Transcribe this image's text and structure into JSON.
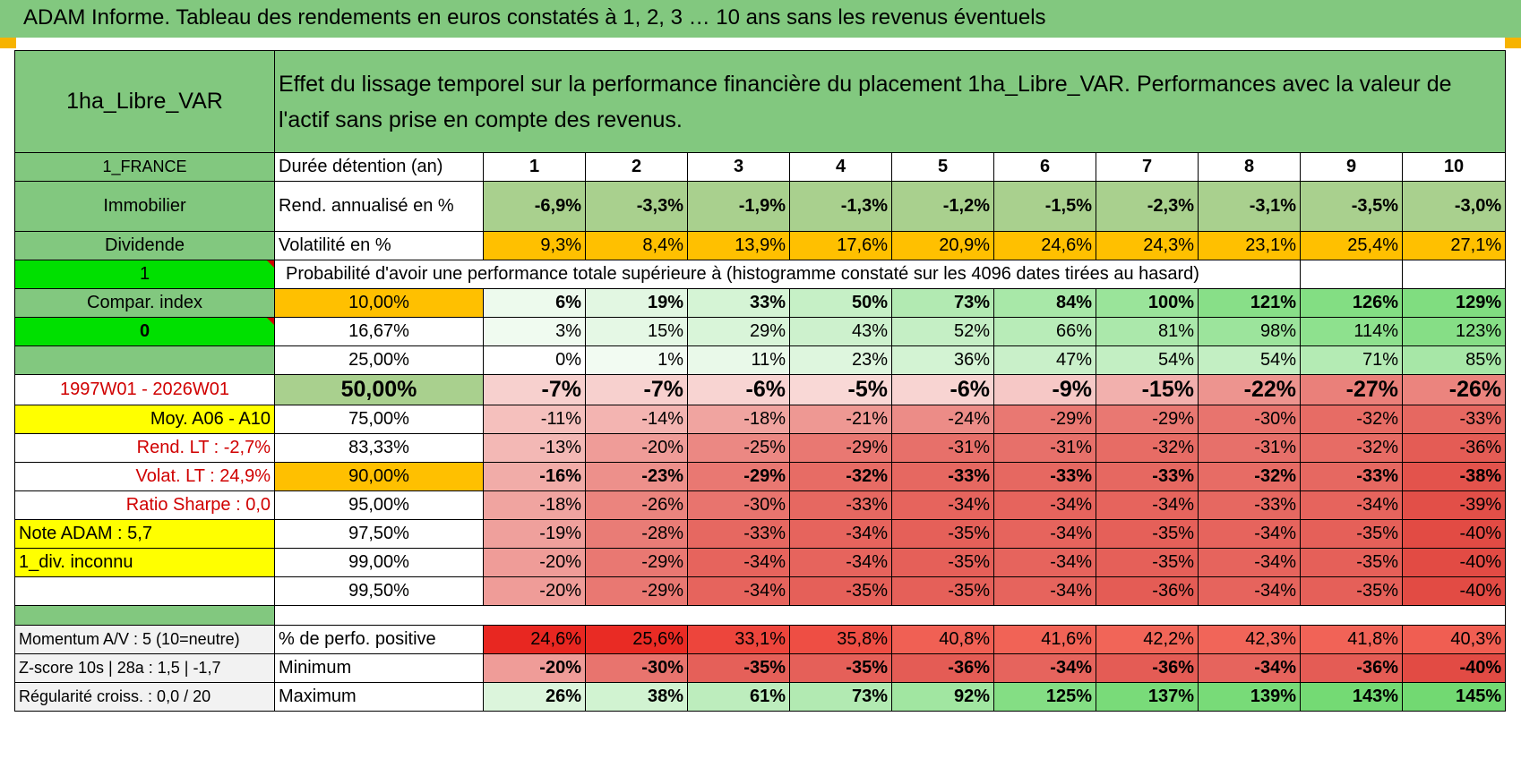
{
  "header": {
    "title": "ADAM Informe. Tableau des rendements en euros constatés à 1, 2, 3 … 10 ans sans les revenus éventuels"
  },
  "asset": {
    "name": "1ha_Libre_VAR",
    "description": "Effet du lissage temporel sur la performance financière du placement 1ha_Libre_VAR. Performances avec la valeur de l'actif sans prise en compte des revenus.",
    "country": "1_FRANCE",
    "category": "Immobilier",
    "income_type": "Dividende",
    "flag_1": "1",
    "compar_index": "Compar. index",
    "flag_0": "0",
    "period": "1997W01 - 2026W01",
    "moy": "Moy. A06 - A10",
    "rend_lt": "Rend. LT :    -2,7%",
    "volat_lt": "Volat. LT :    24,9%",
    "sharpe": "Ratio Sharpe :     0,0",
    "note_adam": "Note ADAM : 5,7",
    "div": "1_div. inconnu",
    "momentum": "Momentum A/V : 5 (10=neutre)",
    "zscore": "Z-score 10s | 28a : 1,5 | -1,7",
    "regularite": "Régularité croiss. : 0,0 / 20"
  },
  "labels": {
    "duree": "Durée détention (an)",
    "rend": "Rend. annualisé en %",
    "vol": "Volatilité en %",
    "proba": "Probabilité d'avoir une performance totale supérieure à (histogramme constaté sur les 4096 dates tirées au hasard)",
    "positive": "% de perfo. positive",
    "minimum": "Minimum",
    "maximum": "Maximum"
  },
  "years": [
    "1",
    "2",
    "3",
    "4",
    "5",
    "6",
    "7",
    "8",
    "9",
    "10"
  ],
  "rendement": [
    "-6,9%",
    "-3,3%",
    "-1,9%",
    "-1,3%",
    "-1,2%",
    "-1,5%",
    "-2,3%",
    "-3,1%",
    "-3,5%",
    "-3,0%"
  ],
  "volatilite": [
    "9,3%",
    "8,4%",
    "13,9%",
    "17,6%",
    "20,9%",
    "24,6%",
    "24,3%",
    "23,1%",
    "25,4%",
    "27,1%"
  ],
  "prob_rows": [
    {
      "level": "10,00%",
      "values": [
        "6%",
        "19%",
        "33%",
        "50%",
        "73%",
        "84%",
        "100%",
        "121%",
        "126%",
        "129%"
      ]
    },
    {
      "level": "16,67%",
      "values": [
        "3%",
        "15%",
        "29%",
        "43%",
        "52%",
        "66%",
        "81%",
        "98%",
        "114%",
        "123%"
      ]
    },
    {
      "level": "25,00%",
      "values": [
        "0%",
        "1%",
        "11%",
        "23%",
        "36%",
        "47%",
        "54%",
        "54%",
        "71%",
        "85%"
      ]
    },
    {
      "level": "50,00%",
      "values": [
        "-7%",
        "-7%",
        "-6%",
        "-5%",
        "-6%",
        "-9%",
        "-15%",
        "-22%",
        "-27%",
        "-26%"
      ]
    },
    {
      "level": "75,00%",
      "values": [
        "-11%",
        "-14%",
        "-18%",
        "-21%",
        "-24%",
        "-29%",
        "-29%",
        "-30%",
        "-32%",
        "-33%"
      ]
    },
    {
      "level": "83,33%",
      "values": [
        "-13%",
        "-20%",
        "-25%",
        "-29%",
        "-31%",
        "-31%",
        "-32%",
        "-31%",
        "-32%",
        "-36%"
      ]
    },
    {
      "level": "90,00%",
      "values": [
        "-16%",
        "-23%",
        "-29%",
        "-32%",
        "-33%",
        "-33%",
        "-33%",
        "-32%",
        "-33%",
        "-38%"
      ]
    },
    {
      "level": "95,00%",
      "values": [
        "-18%",
        "-26%",
        "-30%",
        "-33%",
        "-34%",
        "-34%",
        "-34%",
        "-33%",
        "-34%",
        "-39%"
      ]
    },
    {
      "level": "97,50%",
      "values": [
        "-19%",
        "-28%",
        "-33%",
        "-34%",
        "-35%",
        "-34%",
        "-35%",
        "-34%",
        "-35%",
        "-40%"
      ]
    },
    {
      "level": "99,00%",
      "values": [
        "-20%",
        "-29%",
        "-34%",
        "-34%",
        "-35%",
        "-34%",
        "-35%",
        "-34%",
        "-35%",
        "-40%"
      ]
    },
    {
      "level": "99,50%",
      "values": [
        "-20%",
        "-29%",
        "-34%",
        "-35%",
        "-35%",
        "-34%",
        "-36%",
        "-34%",
        "-35%",
        "-40%"
      ]
    }
  ],
  "positive": [
    "24,6%",
    "25,6%",
    "33,1%",
    "35,8%",
    "40,8%",
    "41,6%",
    "42,2%",
    "42,3%",
    "41,8%",
    "40,3%"
  ],
  "minimum": [
    "-20%",
    "-30%",
    "-35%",
    "-35%",
    "-36%",
    "-34%",
    "-36%",
    "-34%",
    "-36%",
    "-40%"
  ],
  "maximum": [
    "26%",
    "38%",
    "61%",
    "73%",
    "92%",
    "125%",
    "137%",
    "139%",
    "143%",
    "145%"
  ],
  "colors": {
    "header_green": "#82c87f",
    "bright_green": "#00e000",
    "yellow": "#ffff00",
    "orange": "#ffc000",
    "red_text": "#d00000",
    "positive_scale": "#63d563",
    "negative_scale": "#e0423a"
  }
}
